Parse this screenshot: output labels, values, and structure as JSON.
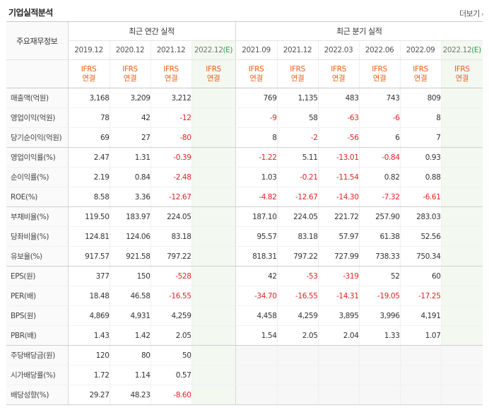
{
  "title": "기업실적분석",
  "more_label": "더보기",
  "more_chevron": "›",
  "row_header": "주요재무정보",
  "groups": {
    "annual": "최근 연간 실적",
    "quarter": "최근 분기 실적"
  },
  "annual_periods": [
    "2019.12",
    "2020.12",
    "2021.12",
    "2022.12"
  ],
  "quarter_periods": [
    "2021.09",
    "2021.12",
    "2022.03",
    "2022.06",
    "2022.09",
    "2022.12"
  ],
  "estimate_mark": "(E)",
  "ifrs_line1": "IFRS",
  "ifrs_line2": "연결",
  "rows": [
    {
      "label": "매출액(억원)",
      "annual": [
        "3,168",
        "3,209",
        "3,212",
        ""
      ],
      "quarter": [
        "769",
        "1,135",
        "483",
        "743",
        "809",
        ""
      ]
    },
    {
      "label": "영업이익(억원)",
      "annual": [
        "78",
        "42",
        "-12",
        ""
      ],
      "quarter": [
        "-9",
        "58",
        "-63",
        "-6",
        "8",
        ""
      ]
    },
    {
      "label": "당기순이익(억원)",
      "annual": [
        "69",
        "27",
        "-80",
        ""
      ],
      "quarter": [
        "8",
        "-2",
        "-56",
        "6",
        "7",
        ""
      ]
    },
    {
      "label": "영업이익률(%)",
      "annual": [
        "2.47",
        "1.31",
        "-0.39",
        ""
      ],
      "quarter": [
        "-1.22",
        "5.11",
        "-13.01",
        "-0.84",
        "0.93",
        ""
      ]
    },
    {
      "label": "순이익률(%)",
      "annual": [
        "2.19",
        "0.84",
        "-2.48",
        ""
      ],
      "quarter": [
        "1.03",
        "-0.21",
        "-11.54",
        "0.82",
        "0.88",
        ""
      ]
    },
    {
      "label": "ROE(%)",
      "annual": [
        "8.58",
        "3.36",
        "-12.67",
        ""
      ],
      "quarter": [
        "-4.82",
        "-12.67",
        "-14.30",
        "-7.32",
        "-6.61",
        ""
      ]
    },
    {
      "label": "부채비율(%)",
      "annual": [
        "119.50",
        "183.97",
        "224.05",
        ""
      ],
      "quarter": [
        "187.10",
        "224.05",
        "221.72",
        "257.90",
        "283.03",
        ""
      ]
    },
    {
      "label": "당좌비율(%)",
      "annual": [
        "124.81",
        "124.06",
        "83.18",
        ""
      ],
      "quarter": [
        "95.57",
        "83.18",
        "57.97",
        "61.38",
        "52.56",
        ""
      ]
    },
    {
      "label": "유보율(%)",
      "annual": [
        "917.57",
        "921.58",
        "797.22",
        ""
      ],
      "quarter": [
        "818.31",
        "797.22",
        "727.99",
        "738.33",
        "750.34",
        ""
      ]
    },
    {
      "label": "EPS(원)",
      "annual": [
        "377",
        "150",
        "-528",
        ""
      ],
      "quarter": [
        "42",
        "-53",
        "-319",
        "52",
        "60",
        ""
      ]
    },
    {
      "label": "PER(배)",
      "annual": [
        "18.48",
        "46.58",
        "-16.55",
        ""
      ],
      "quarter": [
        "-34.70",
        "-16.55",
        "-14.31",
        "-19.05",
        "-17.25",
        ""
      ]
    },
    {
      "label": "BPS(원)",
      "annual": [
        "4,869",
        "4,931",
        "4,259",
        ""
      ],
      "quarter": [
        "4,458",
        "4,259",
        "3,895",
        "3,996",
        "4,191",
        ""
      ]
    },
    {
      "label": "PBR(배)",
      "annual": [
        "1.43",
        "1.42",
        "2.05",
        ""
      ],
      "quarter": [
        "1.54",
        "2.05",
        "2.04",
        "1.33",
        "1.07",
        ""
      ]
    },
    {
      "label": "주당배당금(원)",
      "annual": [
        "120",
        "80",
        "50",
        ""
      ],
      "quarter": null
    },
    {
      "label": "시가배당률(%)",
      "annual": [
        "1.72",
        "1.14",
        "0.57",
        ""
      ],
      "quarter": null
    },
    {
      "label": "배당성향(%)",
      "annual": [
        "29.27",
        "48.23",
        "-8.60",
        ""
      ],
      "quarter": null
    }
  ],
  "group_end_rows": [
    2,
    5,
    8,
    12
  ]
}
